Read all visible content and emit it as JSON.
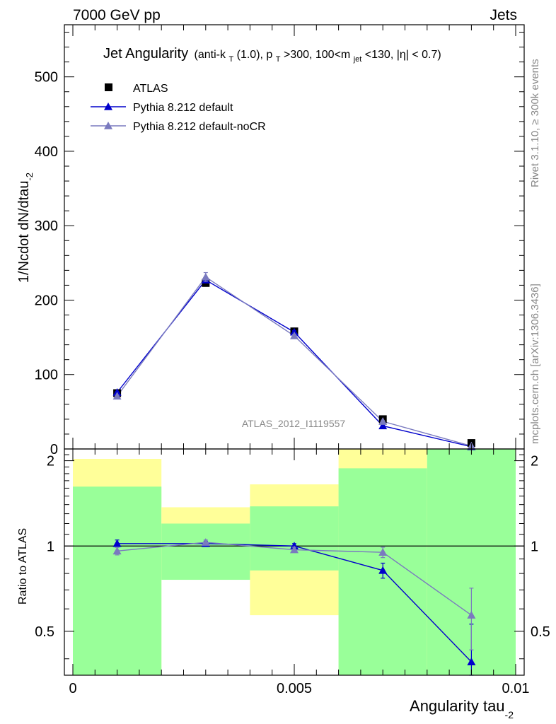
{
  "header": {
    "left": "7000 GeV pp",
    "right": "Jets"
  },
  "side_labels": {
    "rivet": "Rivet 3.1.10, ≥ 300k events",
    "mcplots": "mcplots.cern.ch [arXiv:1306.3436]"
  },
  "watermark": "ATLAS_2012_I1119557",
  "title": {
    "main": "Jet Angularity",
    "sub_parts": [
      "(anti-k",
      "T",
      "(1.0), p",
      "T",
      ">300, 100<m",
      "jet",
      "<130, |η| < 0.7)"
    ]
  },
  "chart_data": [
    {
      "type": "line",
      "panel": "main",
      "ylabel_main": "1/Ncdot dN/dtau",
      "ylabel_sub": "-2",
      "xlim": [
        0,
        0.01
      ],
      "ylim": [
        0,
        570
      ],
      "yticks": [
        0,
        100,
        200,
        300,
        400,
        500
      ],
      "ytick_labels": [
        "0",
        "100",
        "200",
        "300",
        "400",
        "500"
      ],
      "x": [
        0.001,
        0.003,
        0.005,
        0.007,
        0.009
      ],
      "series": [
        {
          "name": "ATLAS",
          "marker": "square",
          "color": "#000000",
          "values": [
            75,
            223,
            158,
            40,
            8
          ]
        },
        {
          "name": "Pythia 8.212 default",
          "marker": "triangle",
          "color": "#0000cc",
          "values": [
            76,
            227,
            157,
            31,
            3
          ],
          "errors": [
            1,
            3,
            2,
            1,
            0.5
          ]
        },
        {
          "name": "Pythia 8.212 default-noCR",
          "marker": "triangle",
          "color": "#7a7abf",
          "values": [
            71,
            231,
            152,
            37,
            4
          ],
          "errors": [
            1,
            6,
            2,
            1,
            0.5
          ]
        }
      ]
    },
    {
      "type": "line",
      "panel": "ratio",
      "ylabel": "Ratio to ATLAS",
      "xlabel_main": "Angularity tau",
      "xlabel_sub": "-2",
      "xlim": [
        0,
        0.01
      ],
      "ylim": [
        0.35,
        2.2
      ],
      "yticks": [
        0.5,
        1,
        2
      ],
      "ytick_labels": [
        "0.5",
        "1",
        "2"
      ],
      "xtick_values": [
        0,
        0.005,
        0.01
      ],
      "xtick_labels": [
        "0",
        "0.005",
        "0.01"
      ],
      "bins": [
        [
          0,
          0.002
        ],
        [
          0.002,
          0.004
        ],
        [
          0.004,
          0.006
        ],
        [
          0.006,
          0.008
        ],
        [
          0.008,
          0.01
        ]
      ],
      "band_yellow": [
        [
          0.35,
          2.03
        ],
        [
          0.76,
          1.37
        ],
        [
          0.57,
          1.65
        ],
        [
          0.35,
          2.2
        ],
        [
          0.35,
          2.2
        ]
      ],
      "band_green": [
        [
          0.35,
          1.62
        ],
        [
          0.76,
          1.2
        ],
        [
          0.82,
          1.38
        ],
        [
          0.35,
          1.88
        ],
        [
          0.35,
          2.2
        ]
      ],
      "x": [
        0.001,
        0.003,
        0.005,
        0.007,
        0.009
      ],
      "series": [
        {
          "name": "Pythia 8.212 default",
          "color": "#0000cc",
          "values": [
            1.02,
            1.02,
            1.0,
            0.82,
            0.39
          ],
          "errors": [
            0.03,
            0.02,
            0.02,
            0.05,
            0.14
          ]
        },
        {
          "name": "Pythia 8.212 default-noCR",
          "color": "#7a7abf",
          "values": [
            0.96,
            1.03,
            0.97,
            0.95,
            0.57
          ],
          "errors": [
            0.03,
            0.02,
            0.02,
            0.04,
            0.14
          ]
        }
      ]
    }
  ]
}
